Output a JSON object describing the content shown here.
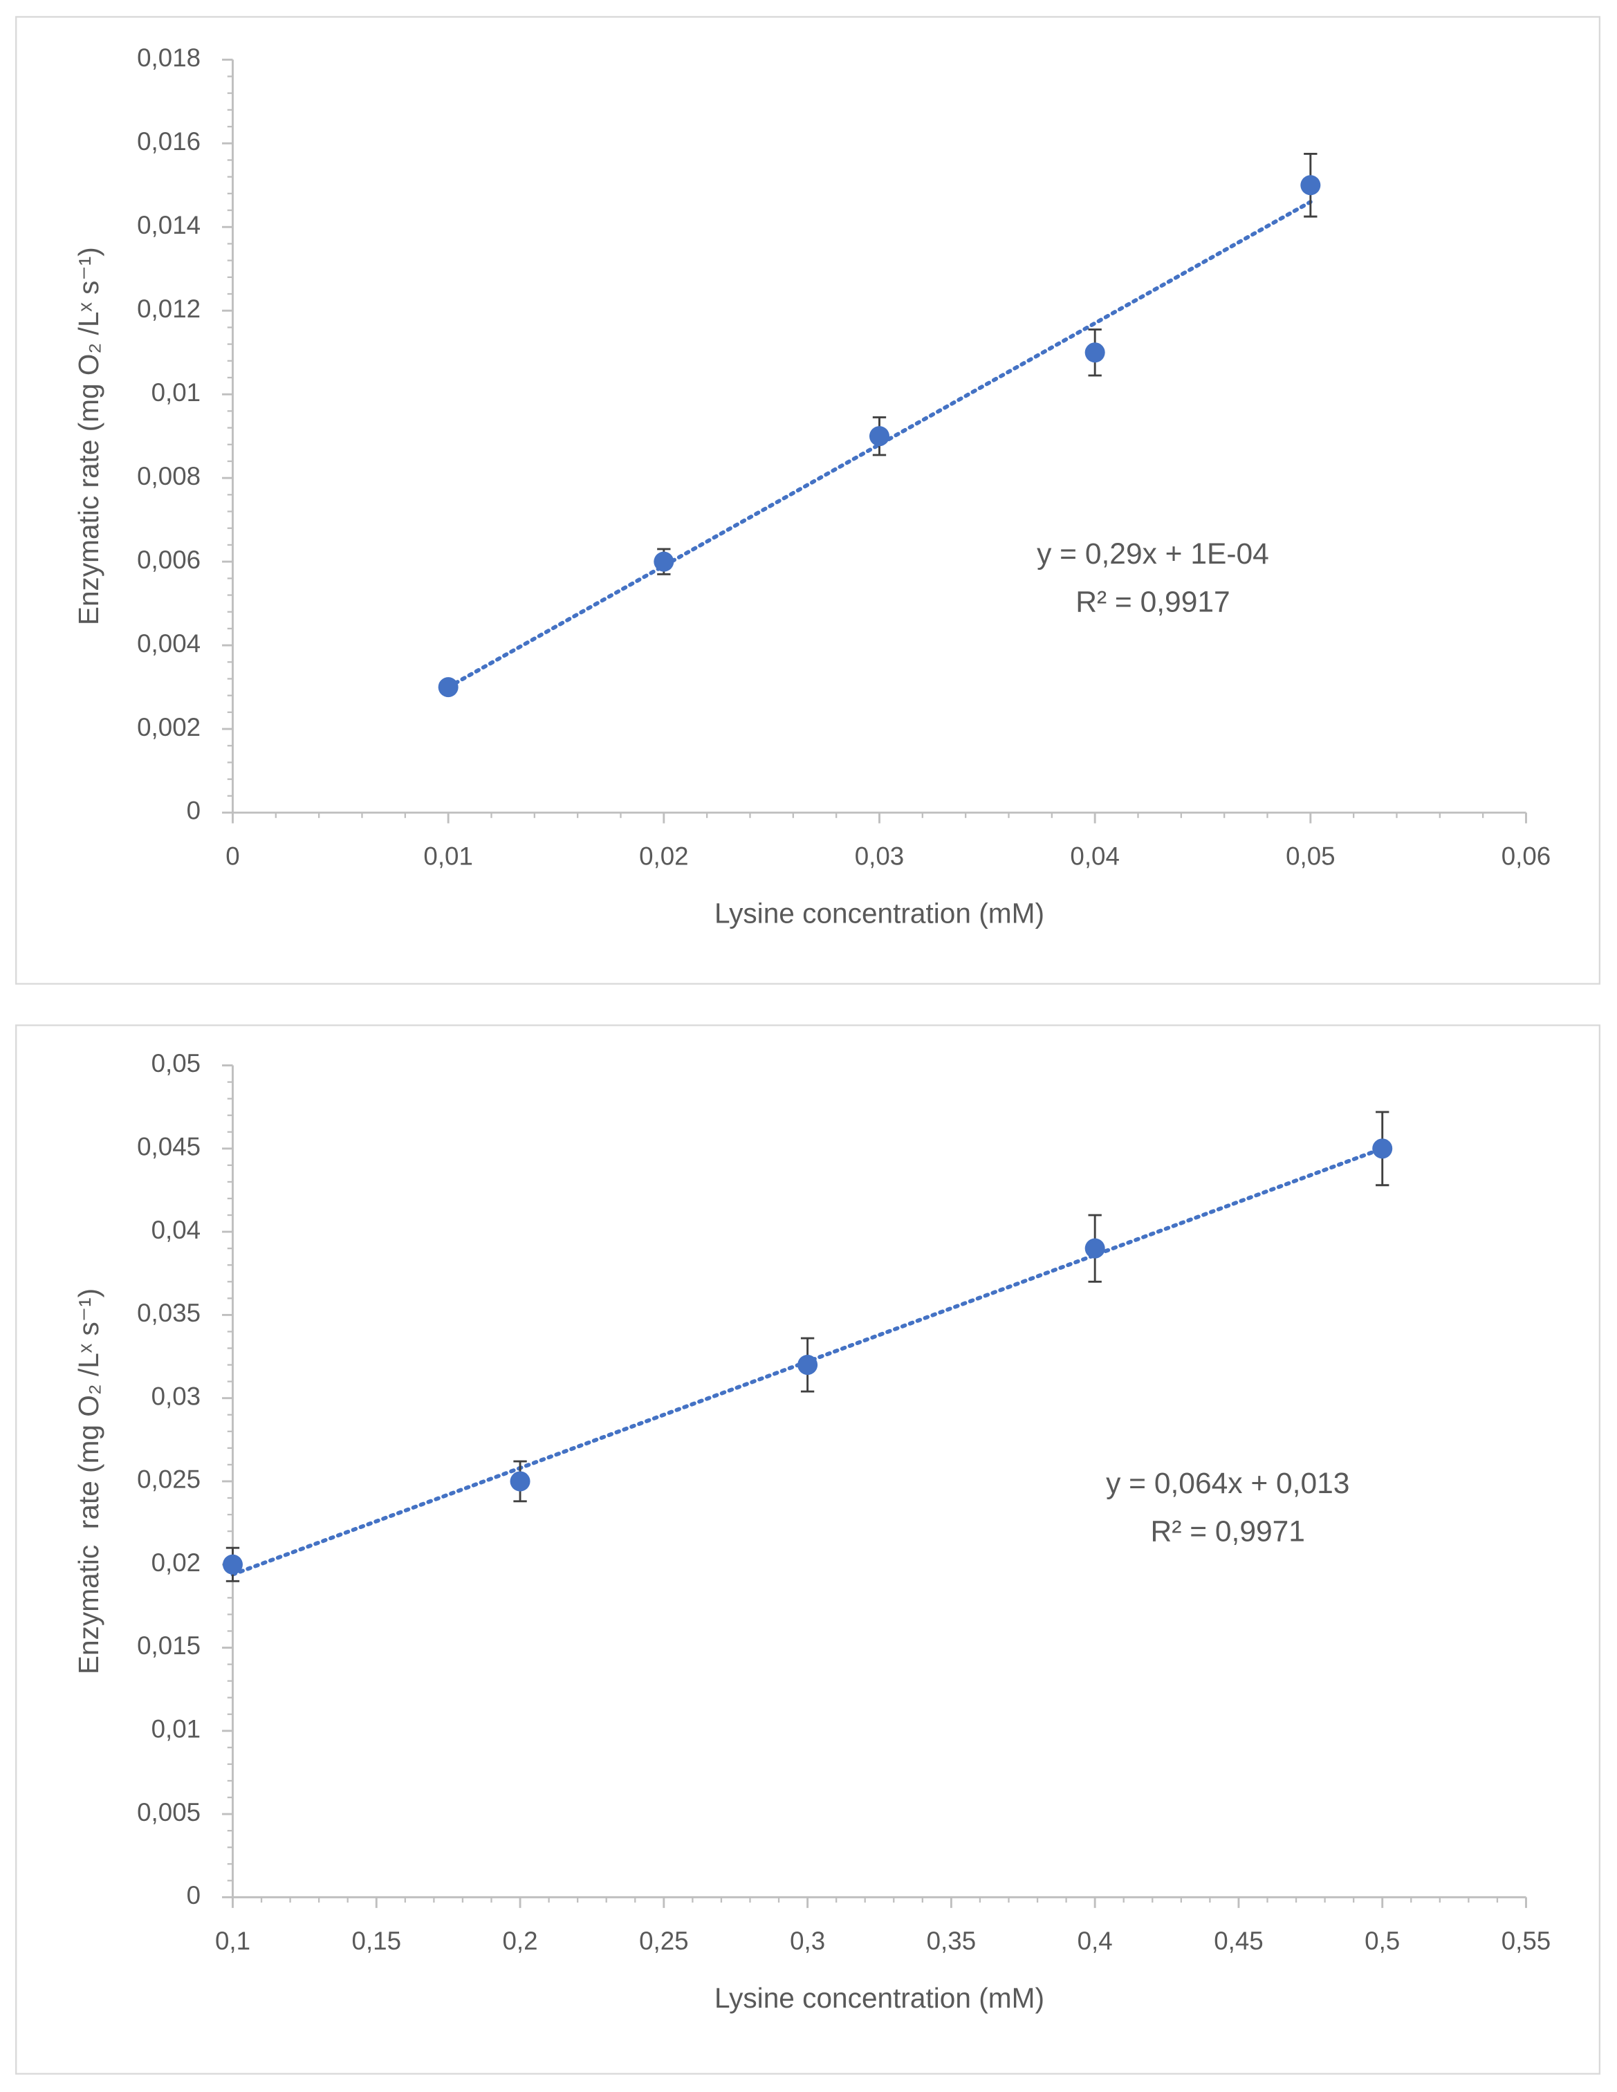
{
  "chart_data": [
    {
      "type": "scatter",
      "x_label": "Lysine concentration (mM)",
      "y_label": "Enzymatic rate (mg O₂ /Lˣ s⁻¹)",
      "annotations": [
        "y = 0,29x + 1E-04",
        "R² = 0,9917"
      ],
      "series": [
        {
          "name": "Enzymatic rate",
          "color": "#4472c4",
          "x": [
            0.01,
            0.02,
            0.03,
            0.04,
            0.05
          ],
          "values": [
            0.003,
            0.006,
            0.009,
            0.011,
            0.015
          ],
          "errors": [
            0,
            0.0003,
            0.00045,
            0.00055,
            0.00075
          ]
        }
      ],
      "trendline": "linear",
      "xlim": [
        0,
        0.06
      ],
      "xticks": [
        0,
        {
          "value": 0.01,
          "label": "0,01"
        },
        {
          "value": 0.02,
          "label": "0,02"
        },
        {
          "value": 0.03,
          "label": "0,03"
        },
        {
          "value": 0.04,
          "label": "0,04"
        },
        {
          "value": 0.05,
          "label": "0,05"
        },
        {
          "value": 0.06,
          "label": "0,06"
        }
      ],
      "ylim": [
        0,
        0.018
      ],
      "yticks": [
        0,
        {
          "value": 0.002,
          "label": "0,002"
        },
        {
          "value": 0.004,
          "label": "0,004"
        },
        {
          "value": 0.006,
          "label": "0,006"
        },
        {
          "value": 0.008,
          "label": "0,008"
        },
        {
          "value": 0.01,
          "label": "0,01"
        },
        {
          "value": 0.012,
          "label": "0,012"
        },
        {
          "value": 0.014,
          "label": "0,014"
        },
        {
          "value": 0.016,
          "label": "0,016"
        },
        {
          "value": 0.018,
          "label": "0,018"
        }
      ],
      "grid": false
    },
    {
      "type": "scatter",
      "x_label": "Lysine concentration (mM)",
      "y_label": "Enzymatic  rate (mg O₂ /Lˣ s⁻¹)",
      "annotations": [
        "y = 0,064x + 0,013",
        "R² = 0,9971"
      ],
      "series": [
        {
          "name": "Enzymatic rate",
          "color": "#4472c4",
          "x": [
            0.1,
            0.2,
            0.3,
            0.4,
            0.5
          ],
          "values": [
            0.02,
            0.025,
            0.032,
            0.039,
            0.045
          ],
          "errors": [
            0.001,
            0.0012,
            0.0016,
            0.002,
            0.0022
          ]
        }
      ],
      "trendline": "linear",
      "xlim": [
        0.1,
        0.55
      ],
      "xticks": [
        {
          "value": 0.1,
          "label": "0,1"
        },
        {
          "value": 0.15,
          "label": "0,15"
        },
        {
          "value": 0.2,
          "label": "0,2"
        },
        {
          "value": 0.25,
          "label": "0,25"
        },
        {
          "value": 0.3,
          "label": "0,3"
        },
        {
          "value": 0.35,
          "label": "0,35"
        },
        {
          "value": 0.4,
          "label": "0,4"
        },
        {
          "value": 0.45,
          "label": "0,45"
        },
        {
          "value": 0.5,
          "label": "0,5"
        },
        {
          "value": 0.55,
          "label": "0,55"
        }
      ],
      "ylim": [
        0,
        0.05
      ],
      "yticks": [
        0,
        {
          "value": 0.005,
          "label": "0,005"
        },
        {
          "value": 0.01,
          "label": "0,01"
        },
        {
          "value": 0.015,
          "label": "0,015"
        },
        {
          "value": 0.02,
          "label": "0,02"
        },
        {
          "value": 0.025,
          "label": "0,025"
        },
        {
          "value": 0.03,
          "label": "0,03"
        },
        {
          "value": 0.035,
          "label": "0,035"
        },
        {
          "value": 0.04,
          "label": "0,04"
        },
        {
          "value": 0.045,
          "label": "0,045"
        },
        {
          "value": 0.05,
          "label": "0,05"
        }
      ],
      "grid": false
    }
  ]
}
